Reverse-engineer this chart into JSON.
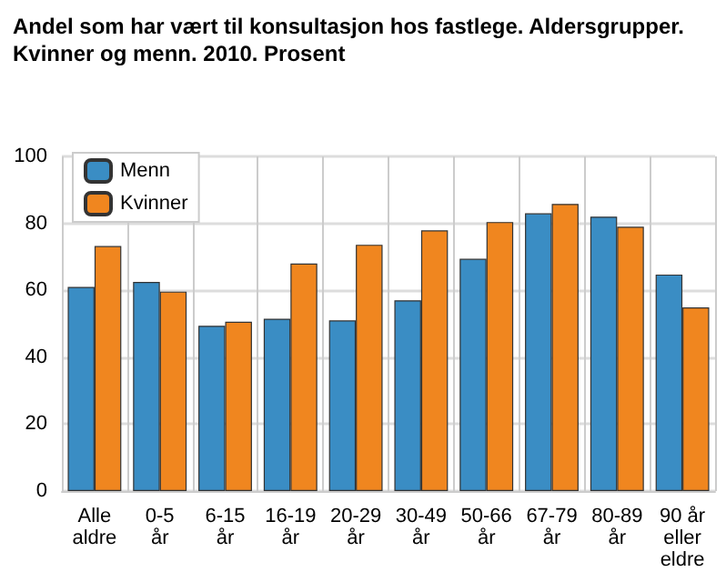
{
  "chart_data": {
    "type": "bar",
    "title": "Andel som har vært til konsultasjon hos fastlege. Aldersgrupper.\nKvinner og menn. 2010. Prosent",
    "categories": [
      "Alle\naldre",
      "0-5\når",
      "6-15\når",
      "16-19\når",
      "20-29\når",
      "30-49\når",
      "50-66\når",
      "67-79\når",
      "80-89\når",
      "90 år\neller\neldre"
    ],
    "series": [
      {
        "name": "Menn",
        "color": "#3a8dc4",
        "values": [
          61,
          62.5,
          49.4,
          51.5,
          51,
          57,
          69.4,
          83,
          82,
          64.7
        ]
      },
      {
        "name": "Kvinner",
        "color": "#f0861f",
        "values": [
          73.2,
          59.6,
          50.6,
          68,
          73.6,
          77.9,
          80.4,
          85.8,
          79,
          54.9
        ]
      }
    ],
    "ylim": [
      0,
      100
    ],
    "yticks": [
      0,
      20,
      40,
      60,
      80,
      100
    ],
    "grid": true,
    "legend": "top left"
  }
}
